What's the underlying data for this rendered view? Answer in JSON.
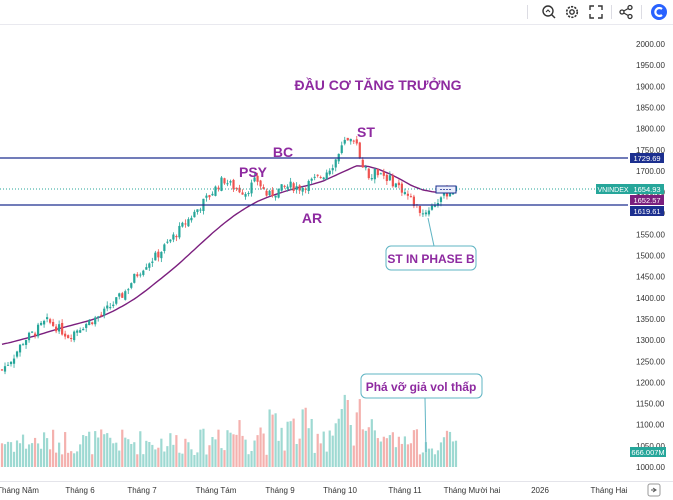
{
  "chart_data": {
    "type": "candlestick",
    "title": "ĐẦU CƠ TĂNG TRƯỞNG",
    "ylim": [
      990,
      2020
    ],
    "y_ticks": [
      1000,
      1050,
      1100,
      1150,
      1200,
      1250,
      1300,
      1350,
      1400,
      1450,
      1500,
      1550,
      1600,
      1650,
      1700,
      1750,
      1800,
      1850,
      1900,
      1950,
      2000
    ],
    "x_labels": [
      "Tháng Năm",
      "Tháng 6",
      "Tháng 7",
      "Tháng Tám",
      "Tháng 9",
      "Tháng 10",
      "Tháng 11",
      "Tháng Mười hai",
      "2026",
      "Tháng Hai"
    ],
    "horizontal_lines": [
      1729.69,
      1619.61
    ],
    "price_labels": {
      "symbol": "VNINDEX",
      "last": "1654.93",
      "ma": "1652.57",
      "resistance": "1729.69",
      "support": "1619.61",
      "volume": "666.007M"
    },
    "annotations": [
      "PSY",
      "BC",
      "AR",
      "ST"
    ],
    "callouts": [
      "ST IN PHASE B",
      "Phá vỡ giả vol thấp"
    ],
    "closes_sampled": [
      1230,
      1260,
      1300,
      1320,
      1345,
      1330,
      1310,
      1330,
      1345,
      1360,
      1385,
      1410,
      1450,
      1480,
      1500,
      1530,
      1560,
      1590,
      1620,
      1650,
      1680,
      1660,
      1650,
      1680,
      1640,
      1655,
      1665,
      1660,
      1675,
      1690,
      1720,
      1770,
      1760,
      1690,
      1700,
      1680,
      1660,
      1630,
      1600,
      1620,
      1648,
      1655
    ],
    "ma_sampled": [
      1290,
      1296,
      1303,
      1310,
      1318,
      1326,
      1333,
      1340,
      1347,
      1356,
      1368,
      1382,
      1398,
      1417,
      1438,
      1459,
      1481,
      1505,
      1529,
      1553,
      1575,
      1595,
      1612,
      1627,
      1638,
      1647,
      1655,
      1662,
      1668,
      1676,
      1688,
      1700,
      1712,
      1711,
      1704,
      1693,
      1680,
      1665,
      1655,
      1650,
      1650,
      1652
    ]
  },
  "ui": {
    "icons": [
      "snapshot-icon",
      "settings-icon",
      "fullscreen-icon",
      "share-icon",
      "logo-icon"
    ],
    "colors": {
      "up": "#26a69a",
      "down": "#ef5350",
      "ma": "#7b1f7e",
      "line": "#1c2f8f",
      "annotation": "#8e2aa0"
    }
  }
}
